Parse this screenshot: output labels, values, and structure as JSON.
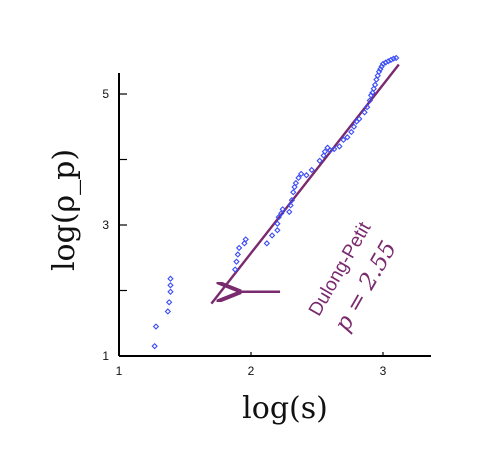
{
  "chart_data": {
    "type": "scatter",
    "xlabel": "log(s)",
    "ylabel": "log(ρ_p)",
    "xlim": [
      1,
      3.4
    ],
    "ylim": [
      1,
      5.8
    ],
    "x_ticks": [
      1,
      2,
      3
    ],
    "x_tick_labels": [
      "1",
      "2",
      "3"
    ],
    "y_ticks": [
      1,
      2,
      3,
      4,
      5
    ],
    "y_tick_labels": [
      "1",
      "",
      "3",
      "",
      "5"
    ],
    "grid": false,
    "series": [
      {
        "marker": "open-diamond",
        "color": "#3b4cf5",
        "points": [
          [
            1.27,
            1.15
          ],
          [
            1.28,
            1.45
          ],
          [
            1.37,
            1.68
          ],
          [
            1.38,
            1.82
          ],
          [
            1.39,
            1.98
          ],
          [
            1.39,
            2.08
          ],
          [
            1.39,
            2.18
          ],
          [
            1.88,
            2.32
          ],
          [
            1.89,
            2.44
          ],
          [
            1.9,
            2.55
          ],
          [
            1.91,
            2.65
          ],
          [
            1.95,
            2.72
          ],
          [
            1.96,
            2.78
          ],
          [
            2.12,
            2.72
          ],
          [
            2.16,
            2.84
          ],
          [
            2.2,
            2.92
          ],
          [
            2.2,
            3.02
          ],
          [
            2.21,
            3.12
          ],
          [
            2.23,
            3.18
          ],
          [
            2.24,
            3.24
          ],
          [
            2.29,
            3.2
          ],
          [
            2.3,
            3.3
          ],
          [
            2.31,
            3.38
          ],
          [
            2.32,
            3.5
          ],
          [
            2.33,
            3.58
          ],
          [
            2.34,
            3.64
          ],
          [
            2.36,
            3.72
          ],
          [
            2.38,
            3.78
          ],
          [
            2.42,
            3.76
          ],
          [
            2.46,
            3.84
          ],
          [
            2.52,
            3.98
          ],
          [
            2.55,
            4.06
          ],
          [
            2.56,
            4.12
          ],
          [
            2.58,
            4.18
          ],
          [
            2.6,
            4.14
          ],
          [
            2.63,
            4.16
          ],
          [
            2.67,
            4.2
          ],
          [
            2.7,
            4.3
          ],
          [
            2.73,
            4.34
          ],
          [
            2.76,
            4.42
          ],
          [
            2.78,
            4.5
          ],
          [
            2.8,
            4.58
          ],
          [
            2.82,
            4.62
          ],
          [
            2.86,
            4.72
          ],
          [
            2.88,
            4.8
          ],
          [
            2.9,
            4.9
          ],
          [
            2.91,
            4.98
          ],
          [
            2.92,
            5.02
          ],
          [
            2.93,
            5.08
          ],
          [
            2.94,
            5.14
          ],
          [
            2.95,
            5.22
          ],
          [
            2.96,
            5.28
          ],
          [
            2.97,
            5.34
          ],
          [
            2.98,
            5.38
          ],
          [
            2.99,
            5.42
          ],
          [
            3.0,
            5.46
          ],
          [
            3.02,
            5.48
          ],
          [
            3.04,
            5.5
          ],
          [
            3.06,
            5.52
          ],
          [
            3.08,
            5.54
          ],
          [
            3.1,
            5.55
          ]
        ]
      }
    ],
    "fit_line": {
      "color": "#7a2a6e",
      "from": [
        1.7,
        1.8
      ],
      "to": [
        3.12,
        5.45
      ]
    },
    "annotation": {
      "label": "Dulong-Petit",
      "equation": "p = 2.55",
      "color": "#7a2a6e",
      "arrow_from": [
        2.22,
        1.98
      ],
      "arrow_to": [
        1.83,
        1.98
      ]
    }
  }
}
